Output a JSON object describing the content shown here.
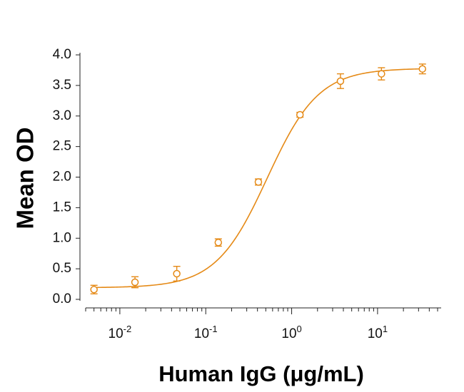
{
  "chart_data": {
    "type": "scatter",
    "title": "",
    "xlabel": "Human IgG (μg/mL)",
    "ylabel": "Mean OD",
    "xscale": "log",
    "xlim": [
      0.004,
      55
    ],
    "ylim": [
      0,
      4.0
    ],
    "grid": false,
    "legend": "none",
    "color": "#e58a17",
    "y_ticks": [
      "0.0",
      "0.5",
      "1.0",
      "1.5",
      "2.0",
      "2.5",
      "3.0",
      "3.5",
      "4.0"
    ],
    "x_ticks": [
      {
        "base": "10",
        "exp": "-2",
        "value": 0.01
      },
      {
        "base": "10",
        "exp": "-1",
        "value": 0.1
      },
      {
        "base": "10",
        "exp": "0",
        "value": 1
      },
      {
        "base": "10",
        "exp": "1",
        "value": 10
      }
    ],
    "series": [
      {
        "x": [
          0.005,
          0.015,
          0.046,
          0.14,
          0.41,
          1.25,
          3.7,
          11.1,
          33.3
        ],
        "y": [
          0.16,
          0.28,
          0.42,
          0.93,
          1.92,
          3.02,
          3.57,
          3.69,
          3.77
        ],
        "error": [
          0.07,
          0.09,
          0.12,
          0.06,
          0.05,
          0.04,
          0.12,
          0.1,
          0.08
        ]
      }
    ],
    "fit": {
      "bottom": 0.19,
      "top": 3.78,
      "ec50": 0.52,
      "hill": 1.45
    }
  }
}
